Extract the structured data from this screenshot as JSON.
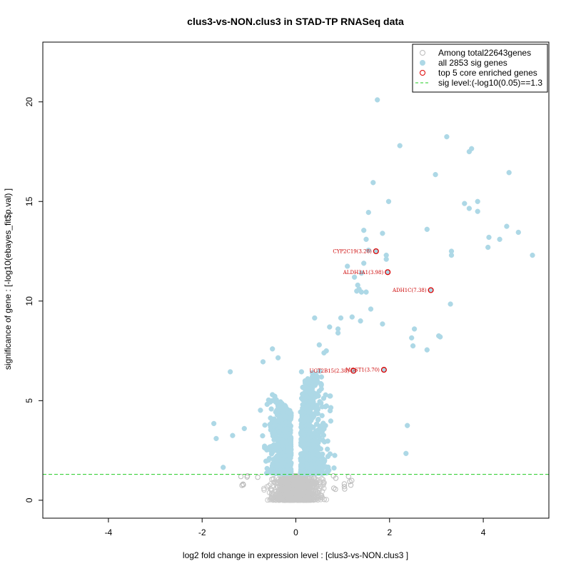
{
  "chart_data": {
    "type": "scatter",
    "title": "clus3-vs-NON.clus3 in STAD-TP RNASeq data",
    "xlabel": "log2 fold change in expression level : [clus3-vs-NON.clus3 ]",
    "ylabel": "significance of gene : [-log10(ebayes_fit$p.val) ]",
    "xlim": [
      -5.4,
      5.4
    ],
    "ylim": [
      -0.9,
      23.0
    ],
    "xticks": [
      -4,
      -2,
      0,
      2,
      4
    ],
    "yticks": [
      0,
      5,
      10,
      15,
      20
    ],
    "sig_level": 1.3,
    "colors": {
      "background_points": "#c8c8c8",
      "sig_points": "#add8e6",
      "enriched": "#dd0000",
      "sig_line": "#22cc22"
    },
    "legend": {
      "position": "top-right",
      "entries": [
        {
          "label": "Among total22643genes",
          "marker": "open-circle-gray"
        },
        {
          "label": "all 2853 sig genes",
          "marker": "filled-circle-lightblue"
        },
        {
          "label": "top 5 core enriched genes",
          "marker": "open-circle-red"
        },
        {
          "label": "sig level:(-log10(0.05)==1.3",
          "marker": "dashed-line-green"
        }
      ]
    },
    "top_genes": [
      {
        "name": "CYP2C19(3.28)",
        "x": 1.71,
        "y": 12.5
      },
      {
        "name": "ALDH3A1(3.98)",
        "x": 1.96,
        "y": 11.45
      },
      {
        "name": "ADH1C(7.38)",
        "x": 2.88,
        "y": 10.55
      },
      {
        "name": "UGT2B15(2.38)",
        "x": 1.23,
        "y": 6.5
      },
      {
        "name": "MGST1(3.70)",
        "x": 1.88,
        "y": 6.55
      }
    ],
    "sig_points": [
      [
        5.05,
        12.3
      ],
      [
        4.75,
        13.45
      ],
      [
        4.5,
        13.75
      ],
      [
        4.55,
        16.45
      ],
      [
        4.35,
        13.1
      ],
      [
        4.12,
        13.2
      ],
      [
        4.1,
        12.7
      ],
      [
        3.88,
        14.5
      ],
      [
        3.88,
        15.0
      ],
      [
        3.75,
        17.65
      ],
      [
        3.7,
        14.65
      ],
      [
        3.7,
        17.5
      ],
      [
        3.6,
        14.9
      ],
      [
        3.32,
        12.3
      ],
      [
        3.32,
        12.5
      ],
      [
        3.3,
        9.85
      ],
      [
        3.22,
        18.25
      ],
      [
        3.08,
        8.2
      ],
      [
        3.05,
        8.25
      ],
      [
        2.98,
        16.35
      ],
      [
        2.8,
        7.55
      ],
      [
        2.8,
        13.6
      ],
      [
        2.53,
        8.6
      ],
      [
        2.5,
        7.75
      ],
      [
        2.47,
        8.15
      ],
      [
        2.38,
        3.75
      ],
      [
        2.35,
        2.35
      ],
      [
        2.22,
        17.8
      ],
      [
        1.98,
        15.0
      ],
      [
        1.93,
        12.1
      ],
      [
        1.93,
        12.3
      ],
      [
        1.85,
        13.4
      ],
      [
        1.85,
        8.85
      ],
      [
        1.74,
        20.1
      ],
      [
        1.65,
        15.95
      ],
      [
        1.6,
        9.6
      ],
      [
        1.55,
        14.45
      ],
      [
        1.55,
        12.55
      ],
      [
        1.5,
        13.1
      ],
      [
        1.45,
        13.55
      ],
      [
        1.45,
        11.9
      ],
      [
        1.5,
        10.45
      ],
      [
        1.4,
        10.45
      ],
      [
        1.4,
        11.4
      ],
      [
        1.35,
        10.6
      ],
      [
        1.38,
        9.0
      ],
      [
        1.32,
        10.8
      ],
      [
        1.3,
        10.5
      ],
      [
        1.25,
        11.2
      ],
      [
        1.2,
        9.2
      ],
      [
        1.1,
        11.75
      ],
      [
        0.96,
        9.15
      ],
      [
        0.9,
        8.6
      ],
      [
        0.9,
        8.4
      ],
      [
        0.72,
        8.7
      ],
      [
        0.65,
        7.5
      ],
      [
        0.6,
        7.4
      ],
      [
        0.5,
        7.8
      ],
      [
        0.4,
        9.15
      ],
      [
        0.35,
        6.4
      ],
      [
        0.12,
        6.45
      ],
      [
        -0.38,
        7.15
      ],
      [
        -0.5,
        7.6
      ],
      [
        -0.7,
        6.95
      ],
      [
        -1.4,
        6.45
      ],
      [
        -1.75,
        3.85
      ],
      [
        -1.7,
        3.1
      ],
      [
        -1.55,
        1.65
      ],
      [
        -1.35,
        3.25
      ],
      [
        -1.1,
        3.6
      ]
    ]
  }
}
